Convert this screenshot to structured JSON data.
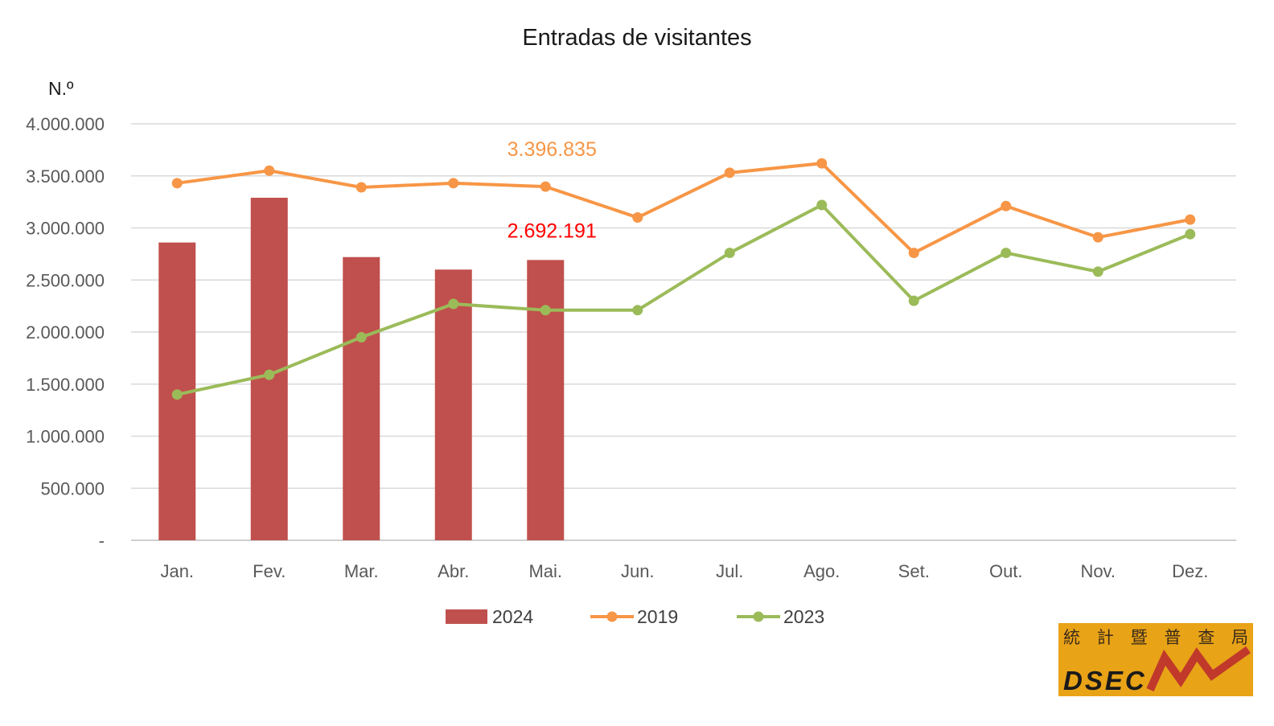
{
  "chart_data": {
    "type": "bar+line",
    "title": "Entradas de visitantes",
    "ylabel": "N.º",
    "xlabel": "",
    "ylim": [
      0,
      4000000
    ],
    "yticks": [
      0,
      500000,
      1000000,
      1500000,
      2000000,
      2500000,
      3000000,
      3500000,
      4000000
    ],
    "ytick_labels": [
      "-",
      "500.000",
      "1.000.000",
      "1.500.000",
      "2.000.000",
      "2.500.000",
      "3.000.000",
      "3.500.000",
      "4.000.000"
    ],
    "categories": [
      "Jan.",
      "Fev.",
      "Mar.",
      "Abr.",
      "Mai.",
      "Jun.",
      "Jul.",
      "Ago.",
      "Set.",
      "Out.",
      "Nov.",
      "Dez."
    ],
    "grid": true,
    "legend_position": "bottom",
    "series": [
      {
        "name": "2024",
        "kind": "bar",
        "color": "#c0504d",
        "values": [
          2860000,
          3290000,
          2720000,
          2600000,
          2692191,
          null,
          null,
          null,
          null,
          null,
          null,
          null
        ]
      },
      {
        "name": "2019",
        "kind": "line",
        "color": "#f79646",
        "values": [
          3430000,
          3550000,
          3390000,
          3430000,
          3396835,
          3100000,
          3530000,
          3620000,
          2760000,
          3210000,
          2910000,
          3080000
        ]
      },
      {
        "name": "2023",
        "kind": "line",
        "color": "#9bbb59",
        "values": [
          1400000,
          1590000,
          1950000,
          2270000,
          2210000,
          2210000,
          2760000,
          3220000,
          2300000,
          2760000,
          2580000,
          2940000
        ]
      }
    ],
    "annotations": [
      {
        "text": "3.396.835",
        "color": "#f79646",
        "series": "2019",
        "category": "Mai."
      },
      {
        "text": "2.692.191",
        "color": "#ff0000",
        "series": "2024",
        "category": "Mai."
      }
    ]
  },
  "logo": {
    "chinese": "統 計 暨 普 查 局",
    "text": "DSEC",
    "bg_color": "#e8a317",
    "accent_color": "#c0392b"
  }
}
